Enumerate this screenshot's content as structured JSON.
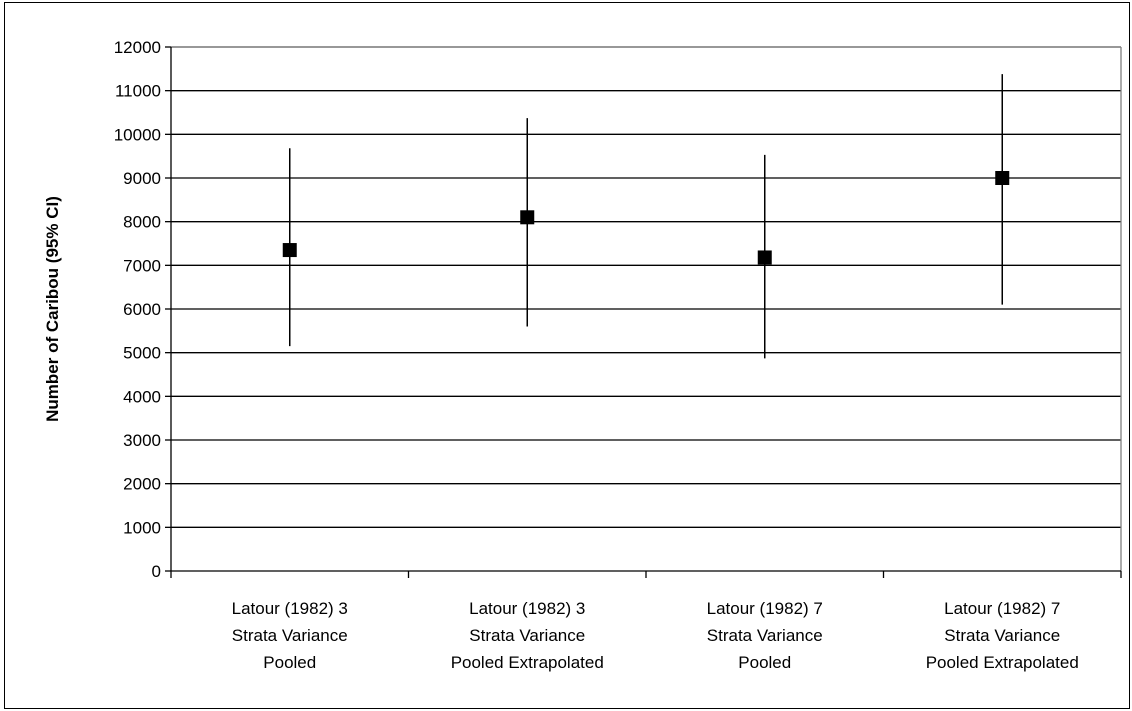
{
  "chart_data": {
    "type": "scatter",
    "title": "",
    "xlabel": "",
    "ylabel": "Number of Caribou (95% CI)",
    "ylim": [
      0,
      12000
    ],
    "yticks": [
      0,
      1000,
      2000,
      3000,
      4000,
      5000,
      6000,
      7000,
      8000,
      9000,
      10000,
      11000,
      12000
    ],
    "grid": "horizontal",
    "legend": "none",
    "categories": [
      [
        "Latour (1982) 3",
        "Strata Variance",
        "Pooled"
      ],
      [
        "Latour (1982) 3",
        "Strata Variance",
        "Pooled Extrapolated"
      ],
      [
        "Latour (1982) 7",
        "Strata Variance",
        "Pooled"
      ],
      [
        "Latour (1982) 7",
        "Strata Variance",
        "Pooled Extrapolated"
      ]
    ],
    "series": [
      {
        "values": [
          7350,
          8100,
          7180,
          9000
        ],
        "ci_low": [
          5150,
          5600,
          4870,
          6100
        ],
        "ci_high": [
          9680,
          10370,
          9530,
          11380
        ],
        "color": "#000000",
        "marker": "square"
      }
    ]
  }
}
